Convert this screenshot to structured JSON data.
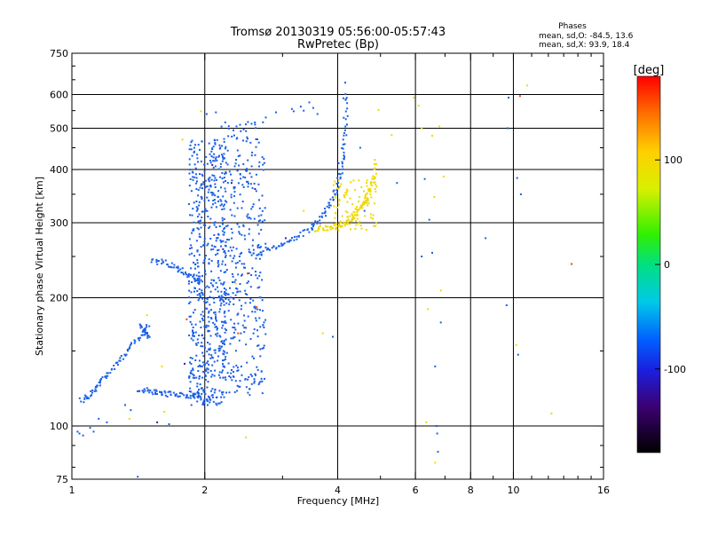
{
  "chart_data": {
    "type": "scatter",
    "title": "Tromsø 20130319 05:56:00-05:57:43",
    "subtitle": "RwPretec (Bp)",
    "xlabel": "Frequency [MHz]",
    "ylabel": "Stationary phase Virtual Height [km]",
    "x_scale": "log",
    "y_scale": "log",
    "xlim": [
      1,
      16
    ],
    "ylim": [
      75,
      750
    ],
    "x_ticks": [
      1,
      2,
      4,
      6,
      8,
      10,
      16
    ],
    "x_minor_ticks": [
      3,
      5,
      7,
      9,
      11,
      12,
      13,
      14,
      15
    ],
    "x_gridlines": [
      2,
      4,
      6,
      8,
      10
    ],
    "y_ticks": [
      75,
      100,
      200,
      300,
      400,
      500,
      600,
      750
    ],
    "y_gridlines": [
      100,
      200,
      300,
      400,
      500,
      600
    ],
    "grid": true,
    "annotation": {
      "title": "Phases",
      "line1": "mean, sd,O: -84.5, 13.6",
      "line2": "mean, sd,X:  93.9, 18.4"
    },
    "colorbar": {
      "label": "[deg]",
      "range": [
        -180,
        180
      ],
      "ticks": [
        100,
        0,
        -100
      ]
    },
    "series": [
      {
        "mode": "O",
        "color": "#1a5fe6",
        "traces": [
          {
            "x": [
              1.05,
              1.09,
              1.13,
              1.17,
              1.22,
              1.28,
              1.33,
              1.39,
              1.45,
              1.5
            ],
            "y": [
              115,
              118,
              123,
              128,
              135,
              142,
              150,
              158,
              165,
              172
            ]
          },
          {
            "x": [
              1.42,
              1.48,
              1.55,
              1.62,
              1.7,
              1.78,
              1.86,
              1.94
            ],
            "y": [
              122,
              121,
              120,
              119,
              119,
              118,
              118,
              118
            ]
          },
          {
            "x": [
              1.52,
              1.6,
              1.68,
              1.76,
              1.84,
              1.92,
              1.98
            ],
            "y": [
              245,
              242,
              238,
              232,
              226,
              222,
              219
            ]
          },
          {
            "x": [
              2.55,
              2.72,
              2.9,
              3.08,
              3.26,
              3.44,
              3.6,
              3.74,
              3.86,
              3.96,
              4.04,
              4.1,
              4.14,
              4.17,
              4.19
            ],
            "y": [
              252,
              258,
              264,
              270,
              278,
              288,
              300,
              316,
              334,
              356,
              382,
              418,
              468,
              530,
              615
            ]
          },
          {
            "x": [
              1.43,
              1.47,
              1.5
            ],
            "y": [
              172,
              168,
              160
            ]
          }
        ],
        "clusters": [
          {
            "x": [
              1.84,
              2.24
            ],
            "y": [
              112,
              470
            ],
            "n": 620
          },
          {
            "x": [
              2.18,
              2.75
            ],
            "y": [
              118,
              520
            ],
            "n": 380
          }
        ],
        "points": [
          {
            "x": 1.03,
            "y": 97
          },
          {
            "x": 1.04,
            "y": 96
          },
          {
            "x": 1.06,
            "y": 95
          },
          {
            "x": 1.1,
            "y": 99
          },
          {
            "x": 1.12,
            "y": 97
          },
          {
            "x": 1.2,
            "y": 102
          },
          {
            "x": 1.41,
            "y": 76
          },
          {
            "x": 1.15,
            "y": 104
          },
          {
            "x": 1.66,
            "y": 101
          },
          {
            "x": 1.36,
            "y": 109
          },
          {
            "x": 1.32,
            "y": 112
          },
          {
            "x": 2.02,
            "y": 540
          },
          {
            "x": 2.12,
            "y": 545
          },
          {
            "x": 2.36,
            "y": 505
          },
          {
            "x": 2.45,
            "y": 497
          },
          {
            "x": 2.6,
            "y": 510
          },
          {
            "x": 2.75,
            "y": 530
          },
          {
            "x": 2.9,
            "y": 545
          },
          {
            "x": 3.15,
            "y": 555
          },
          {
            "x": 3.3,
            "y": 562
          },
          {
            "x": 3.45,
            "y": 575
          },
          {
            "x": 3.52,
            "y": 558
          },
          {
            "x": 3.35,
            "y": 550
          },
          {
            "x": 3.18,
            "y": 548
          },
          {
            "x": 3.6,
            "y": 540
          },
          {
            "x": 4.5,
            "y": 450
          },
          {
            "x": 4.6,
            "y": 320
          },
          {
            "x": 5.45,
            "y": 372
          },
          {
            "x": 6.3,
            "y": 380
          },
          {
            "x": 6.45,
            "y": 305
          },
          {
            "x": 6.55,
            "y": 255
          },
          {
            "x": 6.65,
            "y": 138
          },
          {
            "x": 6.7,
            "y": 100
          },
          {
            "x": 6.72,
            "y": 96
          },
          {
            "x": 6.75,
            "y": 87
          },
          {
            "x": 6.2,
            "y": 250
          },
          {
            "x": 6.85,
            "y": 175
          },
          {
            "x": 8.65,
            "y": 276
          },
          {
            "x": 9.65,
            "y": 192
          },
          {
            "x": 9.7,
            "y": 500
          },
          {
            "x": 10.25,
            "y": 147
          },
          {
            "x": 10.2,
            "y": 382
          },
          {
            "x": 10.4,
            "y": 350
          },
          {
            "x": 9.75,
            "y": 590
          },
          {
            "x": 3.9,
            "y": 162
          },
          {
            "x": 4.12,
            "y": 588
          },
          {
            "x": 4.16,
            "y": 640
          },
          {
            "x": 4.02,
            "y": 414
          }
        ]
      },
      {
        "mode": "X",
        "color": "#f0d800",
        "traces": [
          {
            "x": [
              3.55,
              3.7,
              3.85,
              3.98,
              4.1,
              4.2,
              4.3,
              4.4,
              4.5,
              4.6,
              4.7,
              4.78,
              4.85,
              4.9
            ],
            "y": [
              290,
              291,
              293,
              295,
              298,
              302,
              308,
              315,
              324,
              335,
              350,
              368,
              390,
              420
            ]
          }
        ],
        "clusters": [
          {
            "x": [
              3.9,
              4.9
            ],
            "y": [
              288,
              380
            ],
            "n": 90
          }
        ],
        "points": [
          {
            "x": 1.78,
            "y": 470
          },
          {
            "x": 1.96,
            "y": 548
          },
          {
            "x": 1.48,
            "y": 182
          },
          {
            "x": 1.6,
            "y": 138
          },
          {
            "x": 1.35,
            "y": 104
          },
          {
            "x": 1.62,
            "y": 108
          },
          {
            "x": 2.48,
            "y": 94
          },
          {
            "x": 4.95,
            "y": 552
          },
          {
            "x": 5.3,
            "y": 482
          },
          {
            "x": 5.95,
            "y": 590
          },
          {
            "x": 6.1,
            "y": 565
          },
          {
            "x": 6.2,
            "y": 500
          },
          {
            "x": 6.55,
            "y": 480
          },
          {
            "x": 6.62,
            "y": 345
          },
          {
            "x": 6.85,
            "y": 208
          },
          {
            "x": 6.4,
            "y": 188
          },
          {
            "x": 6.65,
            "y": 82
          },
          {
            "x": 6.35,
            "y": 102
          },
          {
            "x": 10.75,
            "y": 630
          },
          {
            "x": 10.15,
            "y": 155
          },
          {
            "x": 3.35,
            "y": 320
          },
          {
            "x": 3.7,
            "y": 165
          },
          {
            "x": 12.2,
            "y": 107
          },
          {
            "x": 2.35,
            "y": 216
          },
          {
            "x": 6.95,
            "y": 385
          },
          {
            "x": 6.8,
            "y": 505
          }
        ]
      },
      {
        "mode": "other",
        "color": "#e84020",
        "points": [
          {
            "x": 13.55,
            "y": 240
          },
          {
            "x": 2.38,
            "y": 165
          },
          {
            "x": 2.5,
            "y": 228
          },
          {
            "x": 2.05,
            "y": 300
          },
          {
            "x": 1.82,
            "y": 178
          },
          {
            "x": 2.62,
            "y": 190
          },
          {
            "x": 10.35,
            "y": 595
          }
        ]
      },
      {
        "mode": "other",
        "color": "#3a1aa8",
        "points": [
          {
            "x": 2.3,
            "y": 372
          },
          {
            "x": 2.08,
            "y": 410
          },
          {
            "x": 2.2,
            "y": 260
          },
          {
            "x": 1.8,
            "y": 140
          },
          {
            "x": 1.56,
            "y": 102
          },
          {
            "x": 2.6,
            "y": 360
          },
          {
            "x": 3.05,
            "y": 276
          }
        ]
      }
    ]
  }
}
